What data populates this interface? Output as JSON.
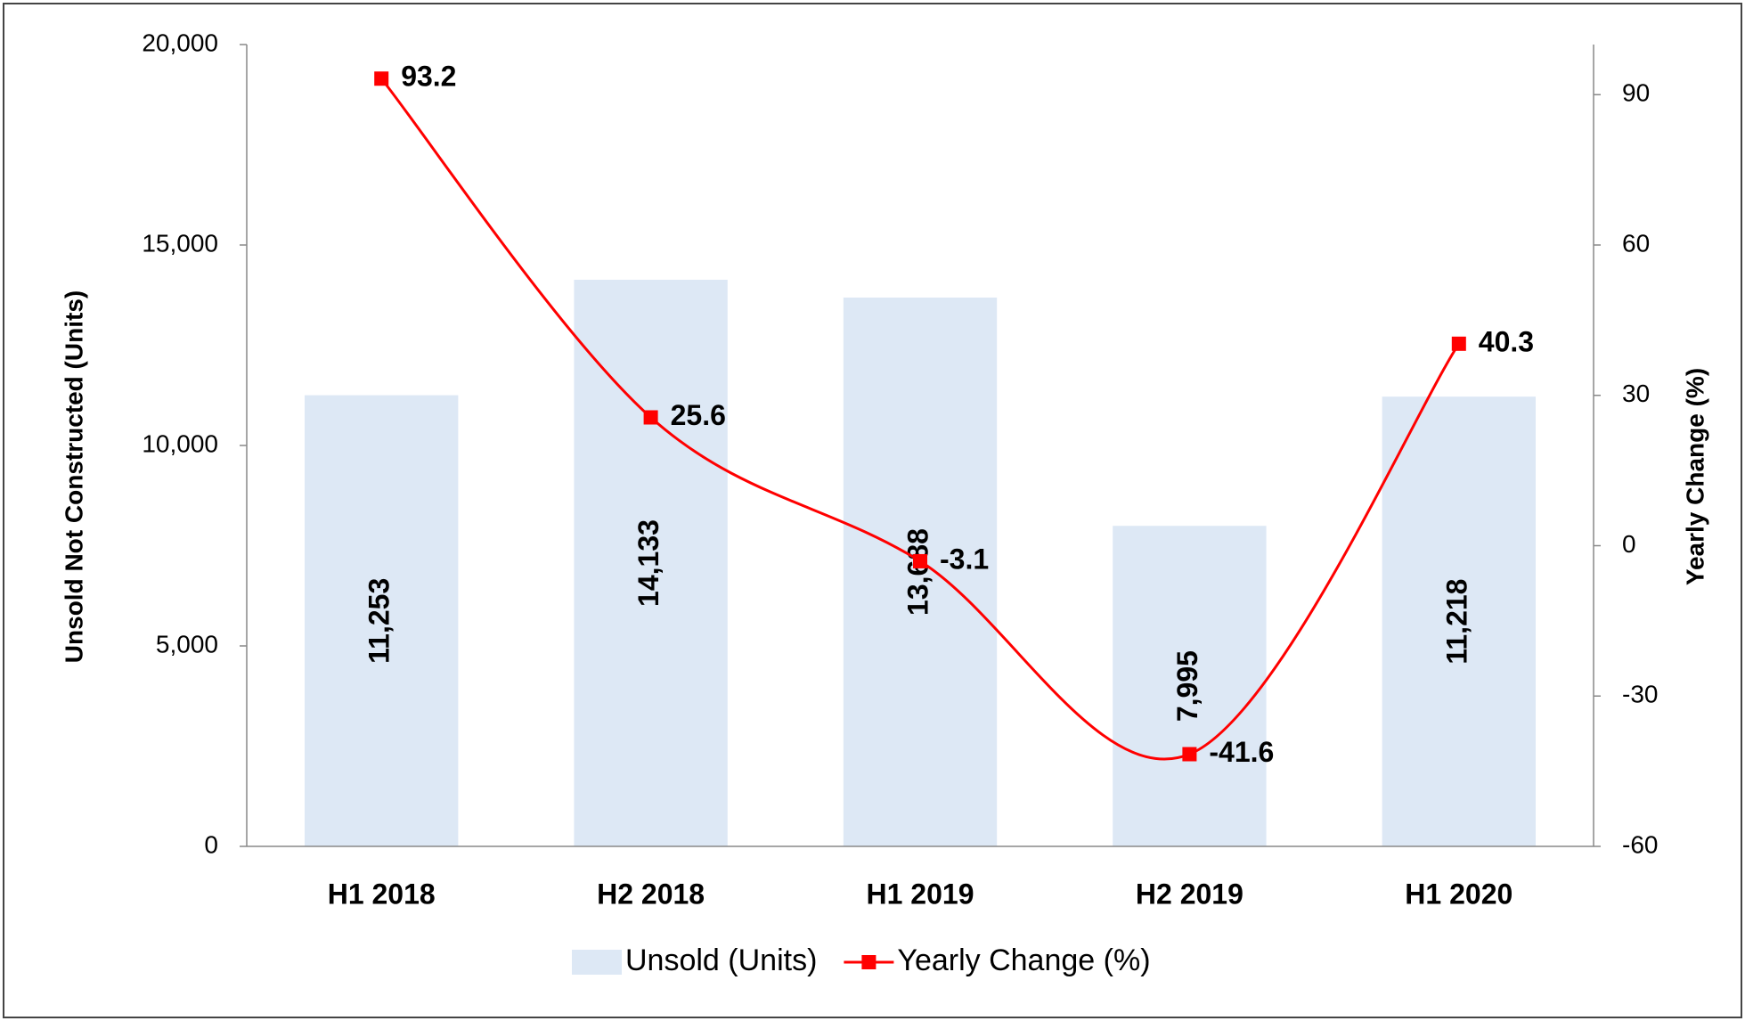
{
  "chart_data": {
    "type": "bar_line",
    "y_label": "Unsold Not Constructed (Units)",
    "y2_label": "Yearly Change (%)",
    "categories": [
      "H1 2018",
      "H2 2018",
      "H1 2019",
      "H2 2019",
      "H1 2020"
    ],
    "series": [
      {
        "name": "Unsold (Units)",
        "type": "bar",
        "color": "#dde8f5",
        "values": [
          11253,
          14133,
          13688,
          7995,
          11218
        ],
        "value_labels": [
          "11,253",
          "14,133",
          "13,688",
          "7,995",
          "11,218"
        ]
      },
      {
        "name": "Yearly Change (%)",
        "type": "line",
        "axis": "y2",
        "color": "#ff0000",
        "values": [
          93.2,
          25.6,
          -3.1,
          -41.6,
          40.3
        ]
      }
    ],
    "ylim": [
      0,
      20000
    ],
    "yticks": [
      0,
      {
        "value": 5000,
        "label": "5,000"
      },
      {
        "value": 10000,
        "label": "10,000"
      },
      {
        "value": 15000,
        "label": "15,000"
      },
      {
        "value": 20000,
        "label": "20,000"
      }
    ],
    "y2lim": [
      -60,
      100
    ],
    "y2ticks": [
      -60,
      -30,
      0,
      30,
      60,
      90
    ],
    "grid": false,
    "legend": "bottom"
  }
}
